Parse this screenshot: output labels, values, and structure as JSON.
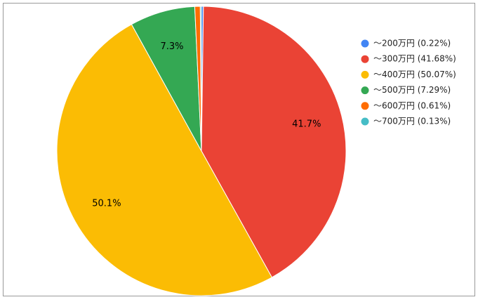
{
  "chart_data": {
    "type": "pie",
    "categories": [
      "～200万円 (0.22%)",
      "～300万円 (41.68%)",
      "～400万円 (50.07%)",
      "～500万円 (7.29%)",
      "～600万円 (0.61%)",
      "～700万円 (0.13%)"
    ],
    "values": [
      0.22,
      41.68,
      50.07,
      7.29,
      0.61,
      0.13
    ],
    "value_labels": [
      null,
      "41.7%",
      "50.1%",
      "7.3%",
      null,
      null
    ],
    "colors": [
      "#4285f4",
      "#ea4335",
      "#fbbc04",
      "#34a853",
      "#ff6d01",
      "#46bdc6"
    ],
    "legend": "right"
  }
}
